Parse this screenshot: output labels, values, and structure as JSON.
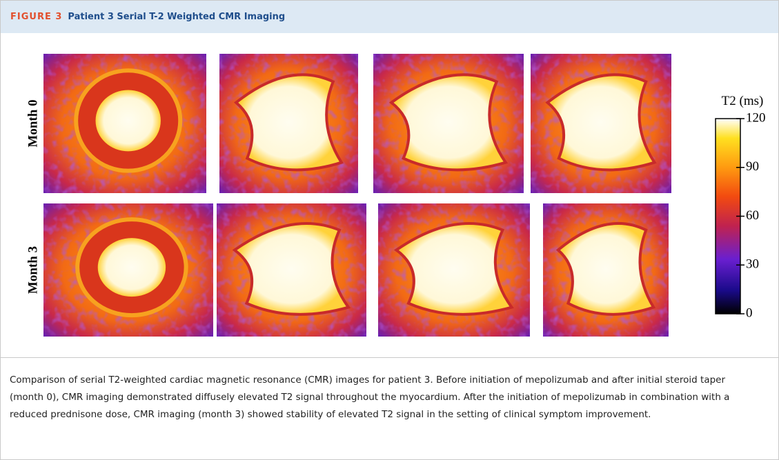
{
  "header": {
    "label": "FIGURE 3",
    "title": "Patient 3 Serial T-2 Weighted CMR Imaging"
  },
  "rows": [
    "Month 0",
    "Month 3"
  ],
  "colorbar": {
    "title": "T2 (ms)",
    "lim": [
      0,
      120
    ],
    "ticks": [
      0,
      30,
      60,
      90,
      120
    ]
  },
  "caption": "Comparison of serial T2-weighted cardiac magnetic resonance (CMR) images for patient 3. Before initiation of mepolizumab and after initial steroid taper (month 0), CMR imaging demonstrated diffusely elevated T2 signal throughout the myocardium. After the initiation of mepolizumab in combination with a reduced prednisone dose, CMR imaging (month 3) showed stability of elevated T2 signal in the setting of clinical symptom improvement."
}
